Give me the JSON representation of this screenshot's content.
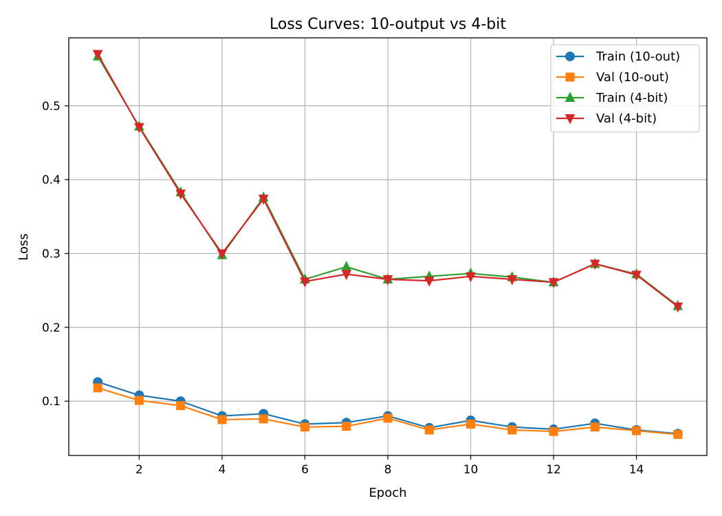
{
  "chart_data": {
    "type": "line",
    "title": "Loss Curves: 10-output vs 4-bit",
    "xlabel": "Epoch",
    "ylabel": "Loss",
    "xlim": [
      0.3,
      15.7
    ],
    "ylim": [
      0.0265,
      0.592
    ],
    "xticks": [
      2,
      4,
      6,
      8,
      10,
      12,
      14
    ],
    "yticks": [
      0.1,
      0.2,
      0.3,
      0.4,
      0.5
    ],
    "grid": true,
    "legend_position": "top-right",
    "x": [
      1,
      2,
      3,
      4,
      5,
      6,
      7,
      8,
      9,
      10,
      11,
      12,
      13,
      14,
      15
    ],
    "series": [
      {
        "name": "Train (10-out)",
        "color": "#1f77b4",
        "marker": "circle",
        "values": [
          0.126,
          0.108,
          0.1,
          0.08,
          0.083,
          0.069,
          0.071,
          0.08,
          0.064,
          0.074,
          0.065,
          0.062,
          0.07,
          0.061,
          0.056
        ]
      },
      {
        "name": "Val (10-out)",
        "color": "#ff7f0e",
        "marker": "square",
        "values": [
          0.118,
          0.101,
          0.094,
          0.075,
          0.076,
          0.065,
          0.066,
          0.077,
          0.061,
          0.069,
          0.061,
          0.059,
          0.065,
          0.06,
          0.055
        ]
      },
      {
        "name": "Train (4-bit)",
        "color": "#2ca02c",
        "marker": "triangle-up",
        "values": [
          0.567,
          0.472,
          0.383,
          0.298,
          0.376,
          0.265,
          0.282,
          0.265,
          0.269,
          0.273,
          0.268,
          0.261,
          0.286,
          0.272,
          0.229
        ]
      },
      {
        "name": "Val (4-bit)",
        "color": "#d62728",
        "marker": "triangle-down",
        "values": [
          0.57,
          0.471,
          0.381,
          0.3,
          0.374,
          0.262,
          0.272,
          0.265,
          0.263,
          0.269,
          0.265,
          0.261,
          0.286,
          0.271,
          0.228
        ]
      }
    ]
  }
}
